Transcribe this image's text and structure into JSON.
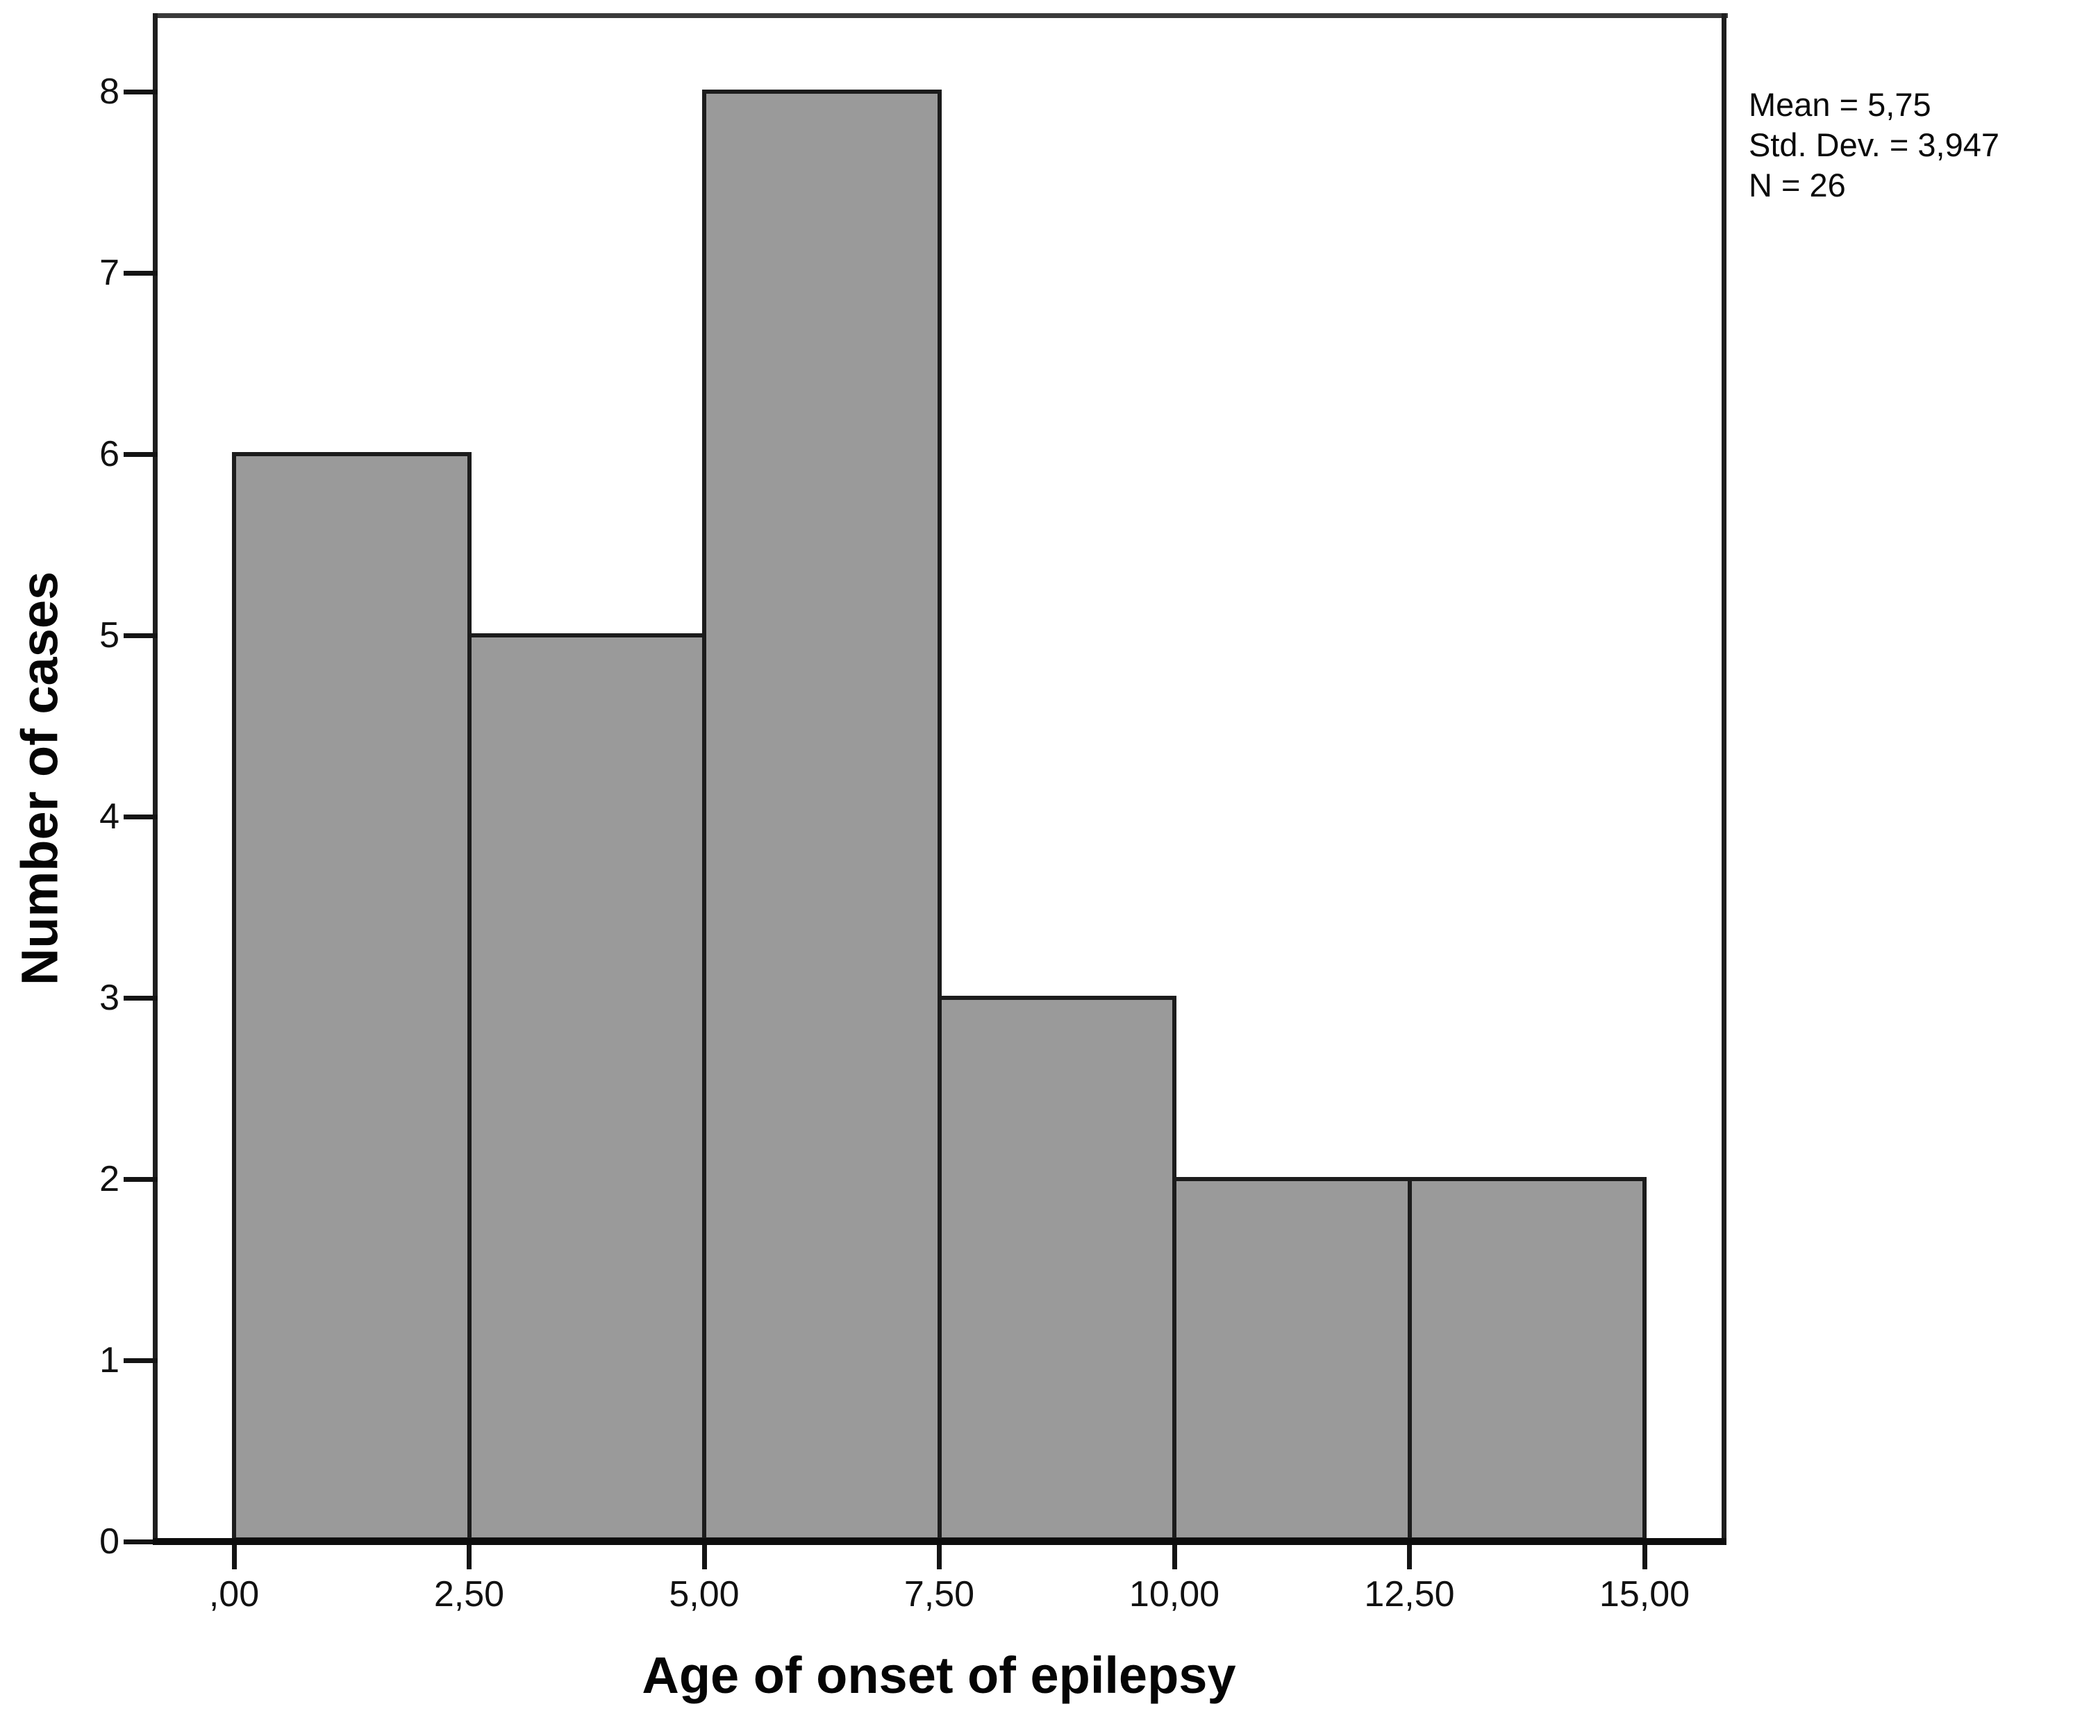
{
  "chart_data": {
    "type": "bar",
    "subtype": "histogram",
    "title": "",
    "xlabel": "Age of onset of epilepsy",
    "ylabel": "Number of cases",
    "bin_edges": [
      0,
      2.5,
      5,
      7.5,
      10,
      12.5,
      15
    ],
    "categories": [
      ",00–2,50",
      "2,50–5,00",
      "5,00–7,50",
      "7,50–10,00",
      "10,00–12,50",
      "12,50–15,00"
    ],
    "values": [
      6,
      5,
      8,
      3,
      2,
      2
    ],
    "x_tick_values": [
      0,
      2.5,
      5,
      7.5,
      10,
      12.5,
      15
    ],
    "x_tick_labels": [
      ",00",
      "2,50",
      "5,00",
      "7,50",
      "10,00",
      "12,50",
      "15,00"
    ],
    "y_tick_values": [
      0,
      1,
      2,
      3,
      4,
      5,
      6,
      7,
      8
    ],
    "y_tick_labels": [
      "0",
      "1",
      "2",
      "3",
      "4",
      "5",
      "6",
      "7",
      "8"
    ],
    "ylim": [
      0,
      8.42
    ],
    "grid": false,
    "legend_position": "none",
    "annotation_position": "top-right-outside",
    "colors": {
      "bar_fill": "#9a9a9a",
      "bar_border": "#1c1c1c",
      "axis": "#141414",
      "text": "#0a0a0a",
      "background": "#ffffff"
    }
  },
  "stats_box": {
    "lines": [
      "Mean = 5,75",
      "Std. Dev. = 3,947",
      "N = 26"
    ]
  }
}
